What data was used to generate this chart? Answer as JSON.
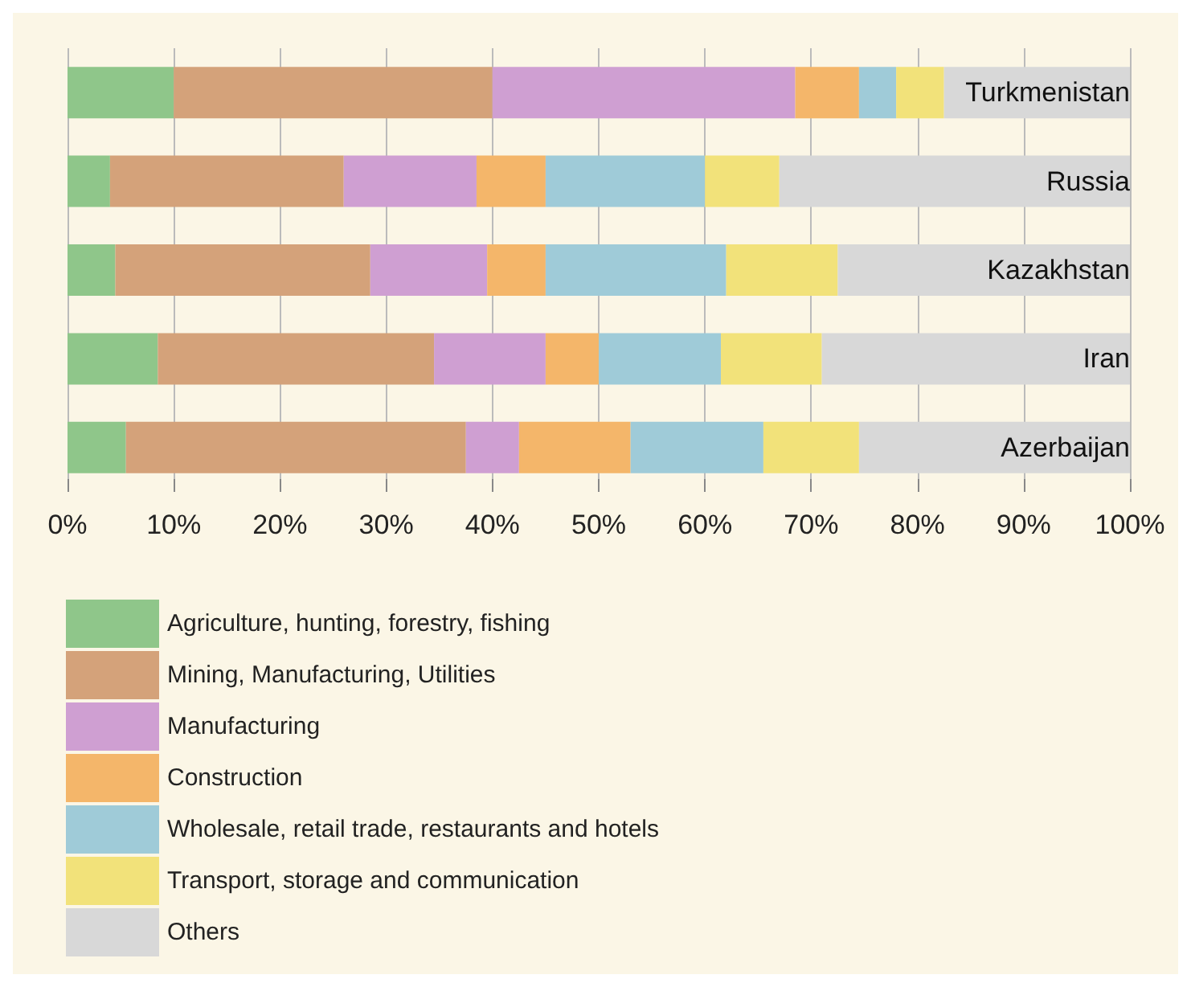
{
  "chart_data": {
    "type": "bar",
    "orientation": "horizontal",
    "stacked": true,
    "categories": [
      "Turkmenistan",
      "Russia",
      "Kazakhstan",
      "Iran",
      "Azerbaijan"
    ],
    "series": [
      {
        "name": "Agriculture, hunting, forestry, fishing",
        "color": "#8fc68a",
        "values": [
          10,
          4,
          4.5,
          8.5,
          5.5
        ]
      },
      {
        "name": "Mining, Manufacturing, Utilities",
        "color": "#d4a27a",
        "values": [
          30,
          22,
          24,
          26,
          32
        ]
      },
      {
        "name": "Manufacturing",
        "color": "#cf9fd2",
        "values": [
          28.5,
          12.5,
          11,
          10.5,
          5
        ]
      },
      {
        "name": "Construction",
        "color": "#f4b66a",
        "values": [
          6,
          6.5,
          5.5,
          5,
          10.5
        ]
      },
      {
        "name": "Wholesale, retail trade, restaurants and hotels",
        "color": "#9fcbd8",
        "values": [
          3.5,
          15,
          17,
          11.5,
          12.5
        ]
      },
      {
        "name": "Transport, storage and communication",
        "color": "#f2e27a",
        "values": [
          4.5,
          7,
          10.5,
          9.5,
          9
        ]
      },
      {
        "name": "Others",
        "color": "#d8d8d8",
        "values": [
          17.5,
          33,
          27.5,
          29,
          25.5
        ]
      }
    ],
    "xlim": [
      0,
      100
    ],
    "xticks": [
      {
        "value": 0,
        "label": "0%"
      },
      {
        "value": 10,
        "label": "10%"
      },
      {
        "value": 20,
        "label": "20%"
      },
      {
        "value": 30,
        "label": "30%"
      },
      {
        "value": 40,
        "label": "40%"
      },
      {
        "value": 50,
        "label": "50%"
      },
      {
        "value": 60,
        "label": "60%"
      },
      {
        "value": 70,
        "label": "70%"
      },
      {
        "value": 80,
        "label": "80%"
      },
      {
        "value": 90,
        "label": "90%"
      },
      {
        "value": 100,
        "label": "100%"
      }
    ],
    "grid": "x",
    "legend": "bottom left"
  }
}
